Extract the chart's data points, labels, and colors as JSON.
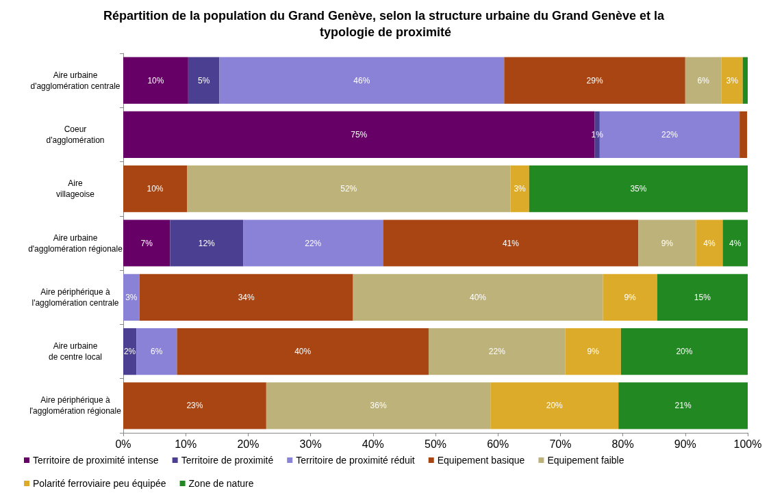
{
  "chart_data": {
    "type": "bar",
    "orientation": "horizontal",
    "stacked": true,
    "title": "Répartition de la population du Grand Genève, selon la structure urbaine du Grand Genève et la typologie de proximité",
    "categories": [
      "Aire urbaine\nd'agglomération centrale",
      "Coeur\nd'agglomération",
      "Aire\nvillageoise",
      "Aire urbaine\nd'agglomération régionale",
      "Aire périphérique à\nl'agglomération centrale",
      "Aire urbaine\nde centre local",
      "Aire périphérique à\nl'agglomération régionale"
    ],
    "series": [
      {
        "name": "Territoire de proximité intense",
        "color": "#660066",
        "values": [
          10.4,
          75.5,
          null,
          7.5,
          null,
          null,
          null
        ],
        "value_labels": [
          "10%",
          "75%",
          null,
          "7%",
          null,
          null,
          null
        ]
      },
      {
        "name": "Territoire de proximité",
        "color": "#4b3f92",
        "values": [
          5.0,
          0.8,
          null,
          11.7,
          null,
          2.1,
          null
        ],
        "value_labels": [
          "5%",
          "1%",
          null,
          "12%",
          null,
          "2%",
          null
        ]
      },
      {
        "name": "Territoire de proximité réduit",
        "color": "#8a82d6",
        "values": [
          45.6,
          22.4,
          null,
          22.4,
          2.6,
          6.5,
          null
        ],
        "value_labels": [
          "46%",
          "22%",
          null,
          "22%",
          "3%",
          "6%",
          null
        ]
      },
      {
        "name": "Equipement basique",
        "color": "#a84512",
        "values": [
          29.0,
          1.2,
          10.2,
          40.9,
          34.2,
          40.3,
          22.9
        ],
        "value_labels": [
          "29%",
          null,
          "10%",
          "41%",
          "34%",
          "40%",
          "23%"
        ]
      },
      {
        "name": "Equipement faible",
        "color": "#bdb27a",
        "values": [
          5.8,
          null,
          51.8,
          9.2,
          40.0,
          21.9,
          35.9
        ],
        "value_labels": [
          "6%",
          null,
          "52%",
          "9%",
          "40%",
          "22%",
          "36%"
        ]
      },
      {
        "name": "Polarité ferroviaire peu équipée",
        "color": "#ddab2a",
        "values": [
          3.4,
          null,
          3.0,
          4.3,
          8.7,
          8.9,
          20.5
        ],
        "value_labels": [
          "3%",
          null,
          "3%",
          "4%",
          "9%",
          "9%",
          "20%"
        ]
      },
      {
        "name": "Zone de nature",
        "color": "#228822",
        "values": [
          0.8,
          null,
          35.0,
          4.0,
          14.5,
          20.3,
          20.7
        ],
        "value_labels": [
          null,
          null,
          "35%",
          "4%",
          "15%",
          "20%",
          "21%"
        ]
      }
    ],
    "xlim": [
      0,
      100
    ],
    "xticks": [
      {
        "value": 0,
        "label": "0%"
      },
      {
        "value": 10,
        "label": "10%"
      },
      {
        "value": 20,
        "label": "20%"
      },
      {
        "value": 30,
        "label": "30%"
      },
      {
        "value": 40,
        "label": "40%"
      },
      {
        "value": 50,
        "label": "50%"
      },
      {
        "value": 60,
        "label": "60%"
      },
      {
        "value": 70,
        "label": "70%"
      },
      {
        "value": 80,
        "label": "80%"
      },
      {
        "value": 90,
        "label": "90%"
      },
      {
        "value": 100,
        "label": "100%"
      }
    ],
    "grid": false,
    "legend": "bottom"
  }
}
